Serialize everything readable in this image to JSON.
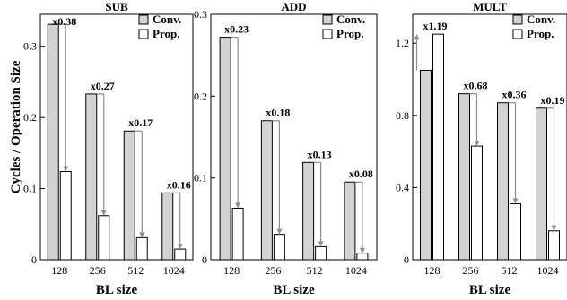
{
  "chart_data": [
    {
      "type": "bar",
      "title": "SUB",
      "xlabel": "BL size",
      "ylabel": "Cycles / Operation Size",
      "categories": [
        "128",
        "256",
        "512",
        "1024"
      ],
      "ylim": [
        0,
        0.345
      ],
      "yticks": [
        0,
        0.1,
        0.2,
        0.3
      ],
      "ytick_labels": [
        "0",
        "0.1",
        "0.2",
        "0.3"
      ],
      "series": [
        {
          "name": "Conv.",
          "values": [
            0.331,
            0.233,
            0.181,
            0.094
          ]
        },
        {
          "name": "Prop.",
          "values": [
            0.124,
            0.062,
            0.031,
            0.015
          ]
        }
      ],
      "ratio_labels": [
        "x0.38",
        "x0.27",
        "x0.17",
        "x0.16"
      ],
      "legend": "top-right",
      "grid": false
    },
    {
      "type": "bar",
      "title": "ADD",
      "xlabel": "BL size",
      "ylabel": "",
      "categories": [
        "128",
        "256",
        "512",
        "1024"
      ],
      "ylim": [
        0,
        0.3
      ],
      "yticks": [
        0,
        0.1,
        0.2,
        0.3
      ],
      "ytick_labels": [
        "0",
        "0.1",
        "0.2",
        "0.3"
      ],
      "series": [
        {
          "name": "Conv.",
          "values": [
            0.272,
            0.17,
            0.119,
            0.095
          ]
        },
        {
          "name": "Prop.",
          "values": [
            0.063,
            0.031,
            0.016,
            0.008
          ]
        }
      ],
      "ratio_labels": [
        "x0.23",
        "x0.18",
        "x0.13",
        "x0.08"
      ],
      "legend": "top-right",
      "grid": false
    },
    {
      "type": "bar",
      "title": "MULT",
      "xlabel": "BL size",
      "ylabel": "",
      "categories": [
        "128",
        "256",
        "512",
        "1024"
      ],
      "ylim": [
        0,
        1.36
      ],
      "yticks": [
        0,
        0.4,
        0.8,
        1.2
      ],
      "ytick_labels": [
        "0",
        "0.4",
        "0.8",
        "1.2"
      ],
      "series": [
        {
          "name": "Conv.",
          "values": [
            1.05,
            0.92,
            0.87,
            0.84
          ]
        },
        {
          "name": "Prop.",
          "values": [
            1.25,
            0.63,
            0.31,
            0.16
          ]
        }
      ],
      "ratio_labels": [
        "x1.19",
        "x0.68",
        "x0.36",
        "x0.19"
      ],
      "legend": "top-right",
      "grid": false
    }
  ],
  "colors": {
    "conv_fill": "#d3d3d3",
    "prop_fill": "#ffffff",
    "bar_stroke": "#000000",
    "arrow": "#8c8c8c"
  }
}
